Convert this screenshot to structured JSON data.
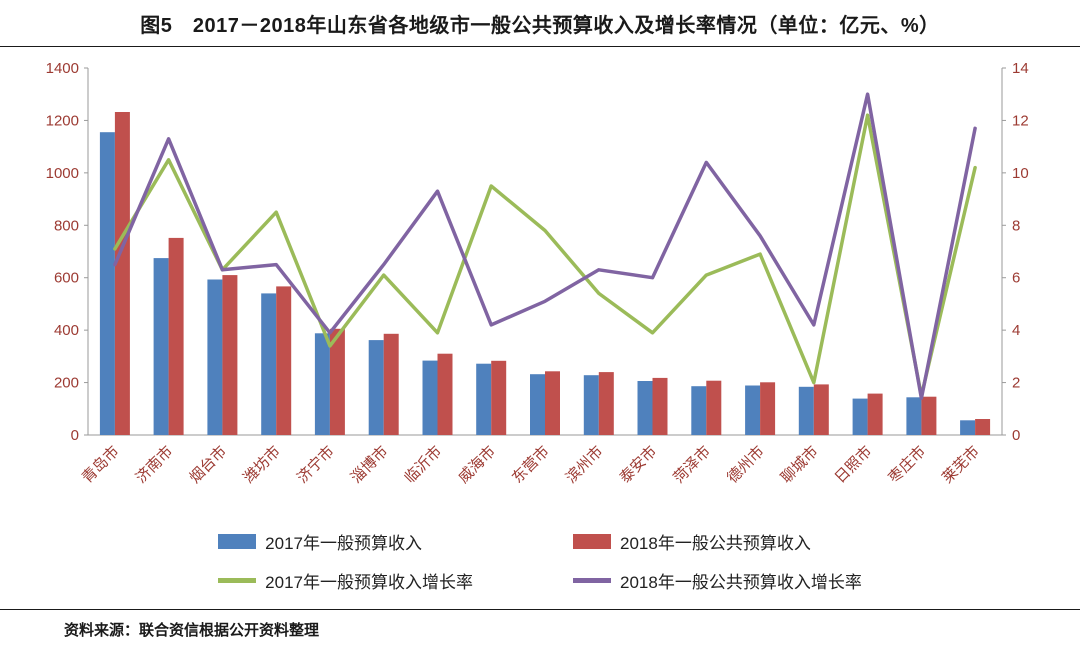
{
  "title": "图5　2017－2018年山东省各地级市一般公共预算收入及增长率情况（单位：亿元、%）",
  "source": "资料来源：联合资信根据公开资料整理",
  "legend": {
    "bar2017": "2017年一般预算收入",
    "bar2018": "2018年一般公共预算收入",
    "line2017": "2017年一般预算收入增长率",
    "line2018": "2018年一般公共预算收入增长率"
  },
  "colors": {
    "bar2017": "#4F81BD",
    "bar2018": "#C0504D",
    "line2017": "#9BBB59",
    "line2018": "#8064A2",
    "axis_text": "#9C3A32",
    "axis_line": "#9a9a9a"
  },
  "chart_data": {
    "type": "bar",
    "subtype": "combo-bar-line-dual-axis",
    "title": "图5　2017－2018年山东省各地级市一般公共预算收入及增长率情况（单位：亿元、%）",
    "unit": "亿元、%",
    "grid": false,
    "legend_position": "bottom",
    "categories": [
      "青岛市",
      "济南市",
      "烟台市",
      "潍坊市",
      "济宁市",
      "淄博市",
      "临沂市",
      "威海市",
      "东营市",
      "滨州市",
      "泰安市",
      "菏泽市",
      "德州市",
      "聊城市",
      "日照市",
      "枣庄市",
      "莱芜市"
    ],
    "left_axis": {
      "min": 0,
      "max": 1400,
      "step": 200,
      "ticks": [
        0,
        200,
        400,
        600,
        800,
        1000,
        1200,
        1400
      ]
    },
    "right_axis": {
      "min": 0,
      "max": 14,
      "step": 2,
      "ticks": [
        0,
        2,
        4,
        6,
        8,
        10,
        12,
        14
      ]
    },
    "series": [
      {
        "name": "2017年一般预算收入",
        "type": "bar",
        "axis": "left",
        "color_key": "bar2017",
        "values": [
          1155,
          675,
          593,
          540,
          388,
          362,
          284,
          272,
          232,
          228,
          206,
          186,
          189,
          184,
          139,
          144,
          56
        ]
      },
      {
        "name": "2018年一般公共预算收入",
        "type": "bar",
        "axis": "left",
        "color_key": "bar2018",
        "values": [
          1232,
          752,
          610,
          567,
          405,
          386,
          310,
          283,
          243,
          240,
          218,
          207,
          201,
          193,
          158,
          146,
          61
        ]
      },
      {
        "name": "2017年一般预算收入增长率",
        "type": "line",
        "axis": "right",
        "color_key": "line2017",
        "values": [
          7.1,
          10.5,
          6.3,
          8.5,
          3.4,
          6.1,
          3.9,
          9.5,
          7.8,
          5.4,
          3.9,
          6.1,
          6.9,
          2.0,
          12.2,
          1.5,
          10.2
        ]
      },
      {
        "name": "2018年一般公共预算收入增长率",
        "type": "line",
        "axis": "right",
        "color_key": "line2018",
        "values": [
          6.5,
          11.3,
          6.3,
          6.5,
          3.9,
          6.5,
          9.3,
          4.2,
          5.1,
          6.3,
          6.0,
          10.4,
          7.6,
          4.2,
          13.0,
          1.4,
          11.7
        ]
      }
    ]
  }
}
